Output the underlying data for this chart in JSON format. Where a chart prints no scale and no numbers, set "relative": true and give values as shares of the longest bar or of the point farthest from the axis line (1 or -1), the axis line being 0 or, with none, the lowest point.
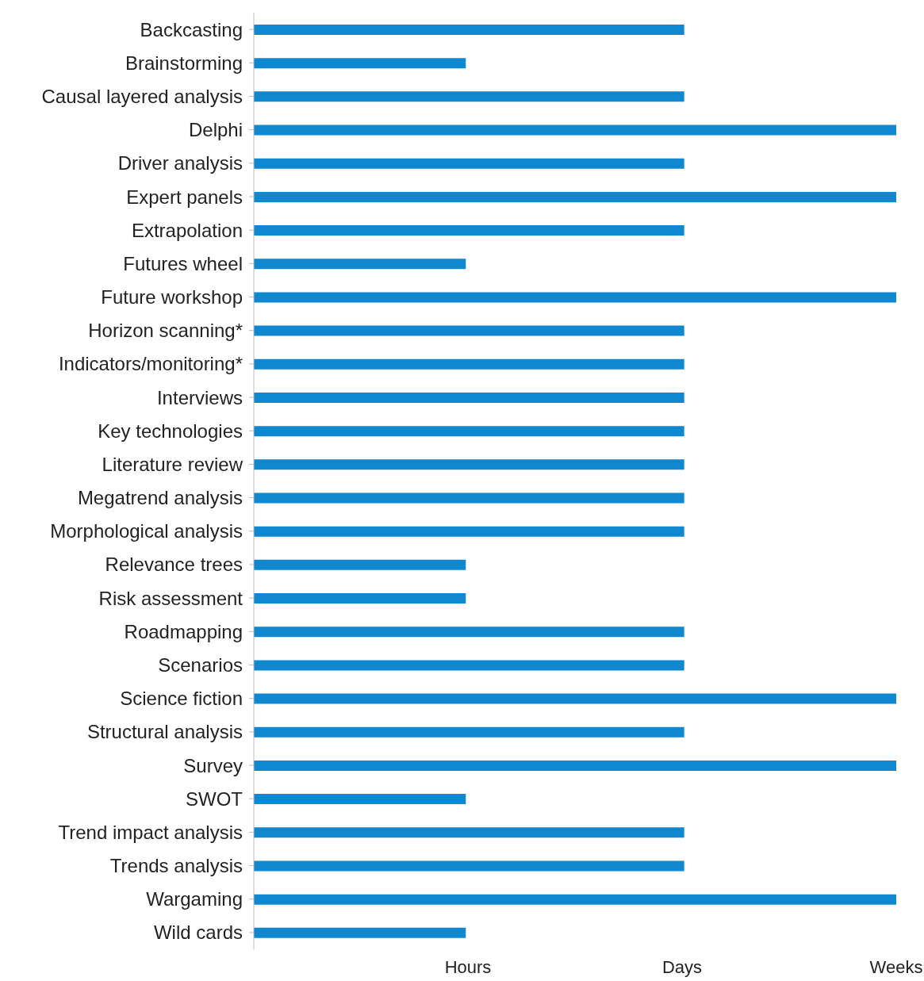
{
  "chart_data": {
    "type": "bar",
    "orientation": "horizontal",
    "relative": true,
    "categories": [
      "Backcasting",
      "Brainstorming",
      "Causal layered analysis",
      "Delphi",
      "Driver analysis",
      "Expert panels",
      "Extrapolation",
      "Futures wheel",
      "Future workshop",
      "Horizon scanning*",
      "Indicators/monitoring*",
      "Interviews",
      "Key technologies",
      "Literature review",
      "Megatrend analysis",
      "Morphological analysis",
      "Relevance trees",
      "Risk assessment",
      "Roadmapping",
      "Scenarios",
      "Science fiction",
      "Structural analysis",
      "Survey",
      "SWOT",
      "Trend impact analysis",
      "Trends analysis",
      "Wargaming",
      "Wild cards"
    ],
    "values": [
      0.67,
      0.33,
      0.67,
      1,
      0.67,
      1,
      0.67,
      0.33,
      1,
      0.67,
      0.67,
      0.67,
      0.67,
      0.67,
      0.67,
      0.67,
      0.33,
      0.33,
      0.67,
      0.67,
      1,
      0.67,
      1,
      0.33,
      0.67,
      0.67,
      1,
      0.33
    ],
    "color": "#1088d0",
    "annotations": [
      "Hours",
      "Days",
      "Weeks"
    ]
  }
}
